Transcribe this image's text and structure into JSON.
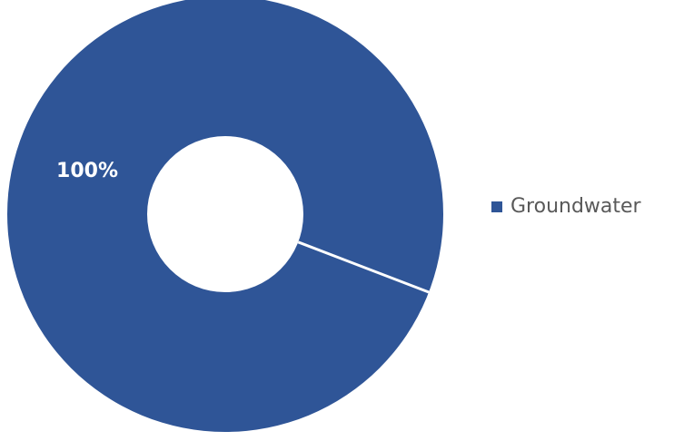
{
  "chart_data": {
    "type": "pie",
    "variant": "donut",
    "slices": [
      {
        "label": "Groundwater",
        "value": 100,
        "data_label": "100%",
        "color": "#2f5597"
      }
    ],
    "legend": {
      "position": "right",
      "entries": [
        "Groundwater"
      ]
    },
    "separator_color": "#ffffff",
    "background_color": "#ffffff"
  }
}
